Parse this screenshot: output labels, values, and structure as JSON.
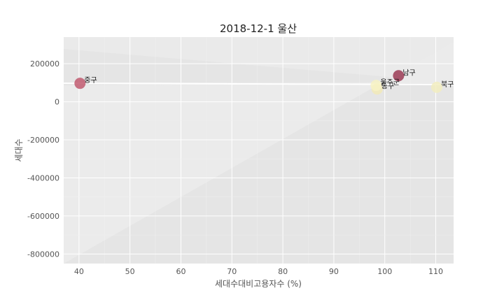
{
  "chart_data": {
    "type": "scatter",
    "title": "2018-12-1 울산",
    "xlabel": "세대수대비고용자수 (%)",
    "ylabel": "세대수",
    "xlim": [
      37,
      113.5
    ],
    "ylim": [
      -850000,
      340000
    ],
    "xticks": [
      40,
      50,
      60,
      70,
      80,
      90,
      100,
      110
    ],
    "yticks": [
      200000,
      0,
      -200000,
      -400000,
      -600000,
      -800000
    ],
    "ytick_labels": [
      "200000",
      "0",
      "-200000",
      "-400000",
      "-600000",
      "-800000"
    ],
    "grid": true,
    "trend_line": true,
    "points": [
      {
        "label": "중구",
        "x": 40.2,
        "y": 97000,
        "color": "#c15a70"
      },
      {
        "label": "남구",
        "x": 102.7,
        "y": 137000,
        "color": "#9b3b55"
      },
      {
        "label": "동구",
        "x": 98.5,
        "y": 67000,
        "color": "#f2eab8"
      },
      {
        "label": "울주군",
        "x": 98.3,
        "y": 86000,
        "color": "#f7f2c4"
      },
      {
        "label": "북구",
        "x": 110.2,
        "y": 76000,
        "color": "#f2edc0"
      }
    ]
  }
}
